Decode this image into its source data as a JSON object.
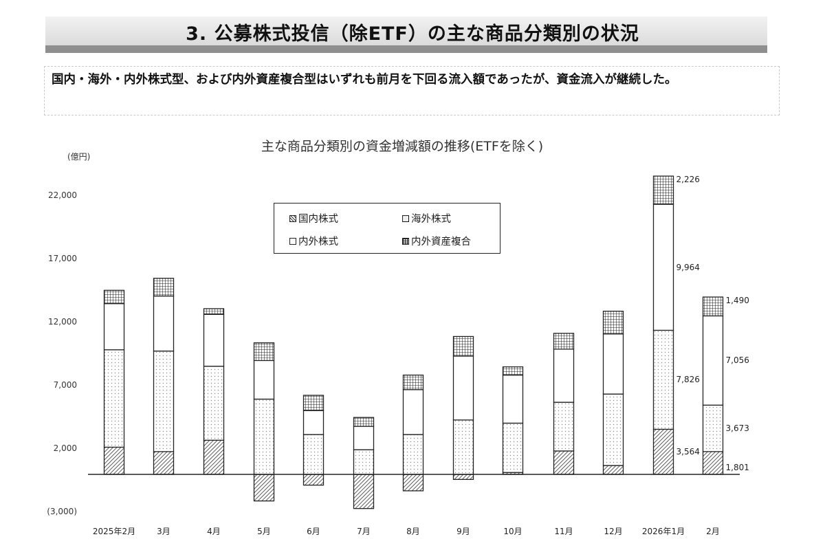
{
  "header": {
    "title": "3. 公募株式投信（除ETF）の主な商品分類別の状況"
  },
  "summary": {
    "text": "国内・海外・内外株式型、および内外資産複合型はいずれも前月を下回る流入額であったが、資金流入が継続した。"
  },
  "chart_data": {
    "type": "bar",
    "stacked": true,
    "title": "主な商品分類別の資金増減額の推移(ETFを除く)",
    "xlabel": "",
    "ylabel": "(億円)",
    "unit": "(億円)",
    "ylim": [
      -3000,
      22000
    ],
    "yticks": [
      "22,000",
      "17,000",
      "12,000",
      "7,000",
      "2,000",
      "(3,000)"
    ],
    "ytick_values": [
      22000,
      17000,
      12000,
      7000,
      2000,
      -3000
    ],
    "grid": false,
    "legend_position": "top-center (inside plot)",
    "categories": [
      "2025年2月",
      "3月",
      "4月",
      "5月",
      "6月",
      "7月",
      "8月",
      "9月",
      "10月",
      "11月",
      "12月",
      "2026年1月",
      "2月"
    ],
    "series": [
      {
        "name": "国内株式",
        "pattern": "diagonal-hatch",
        "values": [
          2150,
          1800,
          2700,
          -2100,
          -850,
          -2700,
          -1300,
          -400,
          150,
          1850,
          700,
          3564,
          1801
        ]
      },
      {
        "name": "海外株式",
        "pattern": "dotted",
        "values": [
          7700,
          7950,
          5850,
          5950,
          3150,
          1950,
          3150,
          4300,
          3900,
          3850,
          5650,
          7826,
          3673
        ]
      },
      {
        "name": "内外株式",
        "pattern": "blank",
        "values": [
          3650,
          4350,
          4100,
          3050,
          1900,
          1850,
          3550,
          5050,
          3800,
          4200,
          4750,
          9964,
          7056
        ]
      },
      {
        "name": "内外資産複合",
        "pattern": "grid",
        "values": [
          1050,
          1400,
          450,
          1400,
          1200,
          700,
          1150,
          1550,
          650,
          1250,
          1800,
          2226,
          1490
        ]
      }
    ],
    "data_labels": {
      "2026年1月": {
        "国内株式": "3,564",
        "海外株式": "7,826",
        "内外株式": "9,964",
        "内外資産複合": "2,226"
      },
      "2月": {
        "国内株式": "1,801",
        "海外株式": "3,673",
        "内外株式": "7,056",
        "内外資産複合": "1,490"
      }
    }
  },
  "legend": {
    "items": [
      {
        "label": "国内株式",
        "pattern": "diagonal-hatch"
      },
      {
        "label": "海外株式",
        "pattern": "dotted"
      },
      {
        "label": "内外株式",
        "pattern": "blank"
      },
      {
        "label": "内外資産複合",
        "pattern": "grid"
      }
    ]
  },
  "colors": {
    "bar_outline": "#222222",
    "header_band": "#d9d9d9",
    "header_rule": "#8f8f8f",
    "axis": "#222222"
  }
}
